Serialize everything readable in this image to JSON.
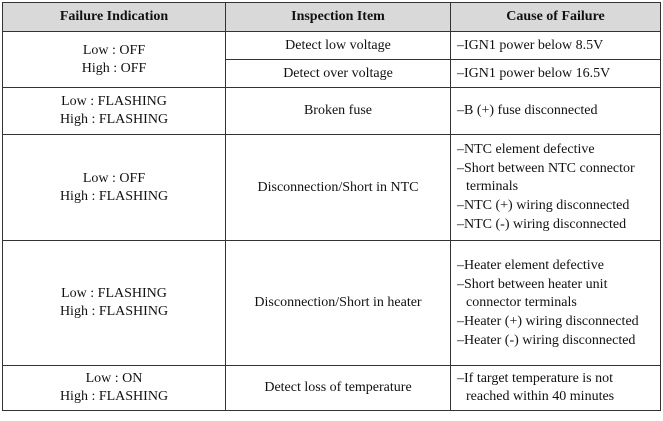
{
  "table": {
    "header": [
      "Failure Indication",
      "Inspection Item",
      "Cause of Failure"
    ],
    "rows": [
      {
        "failure": [
          "Low : OFF",
          "High : OFF"
        ],
        "items": [
          {
            "inspection": "Detect low voltage",
            "causes": [
              "–IGN1 power below 8.5V"
            ]
          },
          {
            "inspection": "Detect over voltage",
            "causes": [
              "–IGN1 power below 16.5V"
            ]
          }
        ]
      },
      {
        "failure": [
          "Low : FLASHING",
          "High : FLASHING"
        ],
        "items": [
          {
            "inspection": "Broken fuse",
            "causes": [
              "–B (+) fuse disconnected"
            ]
          }
        ]
      },
      {
        "failure": [
          "Low : OFF",
          "High : FLASHING"
        ],
        "items": [
          {
            "inspection": "Disconnection/Short in NTC",
            "causes": [
              "–NTC element defective",
              "–Short between NTC connector terminals",
              "–NTC (+) wiring disconnected",
              "–NTC (-) wiring disconnected"
            ]
          }
        ]
      },
      {
        "failure": [
          "Low : FLASHING",
          "High : FLASHING"
        ],
        "items": [
          {
            "inspection": "Disconnection/Short in heater",
            "causes": [
              "–Heater element defective",
              "–Short between heater unit connector terminals",
              "–Heater (+) wiring disconnected",
              "–Heater (-) wiring disconnected"
            ]
          }
        ]
      },
      {
        "failure": [
          "Low : ON",
          "High : FLASHING"
        ],
        "items": [
          {
            "inspection": "Detect loss of temperature",
            "causes": [
              "–If target temperature is not reached within 40 minutes"
            ]
          }
        ]
      }
    ]
  }
}
